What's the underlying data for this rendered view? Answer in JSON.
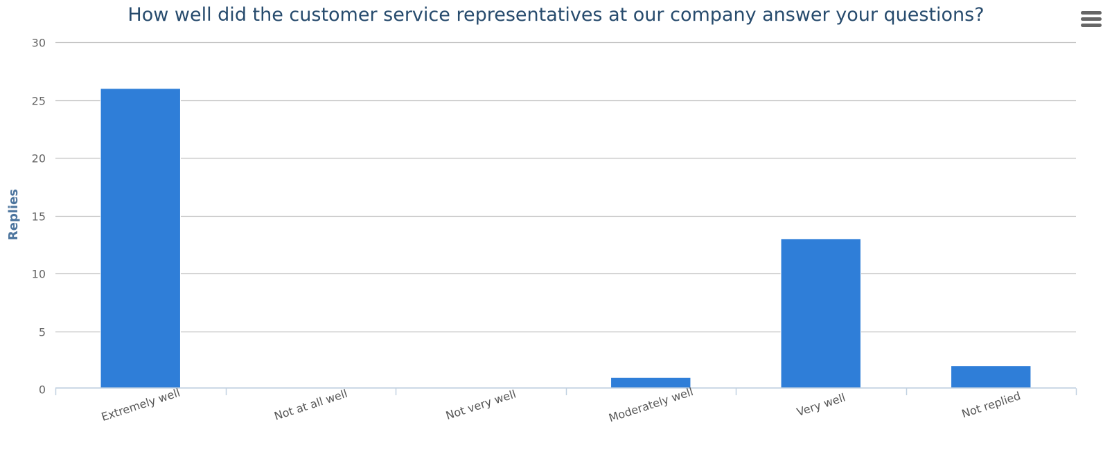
{
  "chart_data": {
    "type": "bar",
    "title": "How well did the customer service representatives at our company answer your questions?",
    "xlabel": "",
    "ylabel": "Replies",
    "categories": [
      "Extremely well",
      "Not at all well",
      "Not very well",
      "Moderately well",
      "Very well",
      "Not replied"
    ],
    "values": [
      26,
      0,
      0,
      1,
      13,
      2
    ],
    "ylim": [
      0,
      30
    ],
    "yticks": [
      0,
      5,
      10,
      15,
      20,
      25,
      30
    ],
    "grid": true,
    "legend": "none"
  },
  "colors": {
    "bar": "#2f7ed8",
    "title": "#274b6d",
    "axis_title": "#4d759e",
    "grid": "#c0c0c0",
    "axis_line": "#c0d0e0"
  },
  "menu": {
    "icon": "hamburger-menu-icon"
  }
}
